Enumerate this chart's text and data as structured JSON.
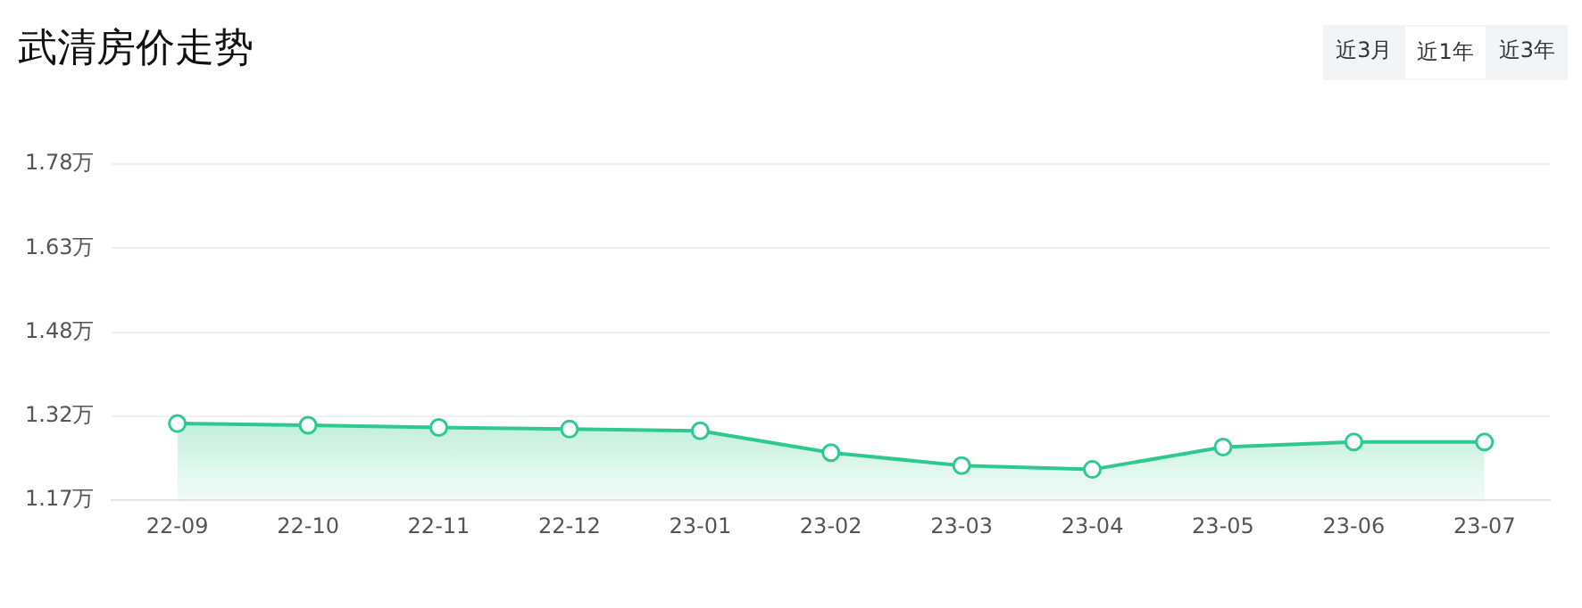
{
  "chart_data": {
    "type": "area",
    "title": "武清房价走势",
    "annotations": [
      "近3月",
      "近1年",
      "近3年"
    ],
    "categories": [
      "22-09",
      "22-10",
      "22-11",
      "22-12",
      "23-01",
      "23-02",
      "23-03",
      "23-04",
      "23-05",
      "23-06",
      "23-07"
    ],
    "series": [
      {
        "color": "#2ec98e",
        "values": [
          1.312,
          1.309,
          1.305,
          1.302,
          1.299,
          1.26,
          1.237,
          1.23,
          1.27,
          1.279,
          1.279
        ]
      }
    ],
    "ylim": [
      1.175,
      1.775
    ],
    "yticks": [
      {
        "value": 1.175,
        "label": "1.17万"
      },
      {
        "value": 1.325,
        "label": "1.32万"
      },
      {
        "value": 1.475,
        "label": "1.48万"
      },
      {
        "value": 1.625,
        "label": "1.63万"
      },
      {
        "value": 1.775,
        "label": "1.78万"
      }
    ],
    "grid": "y",
    "marker": "circle",
    "legend": false
  }
}
